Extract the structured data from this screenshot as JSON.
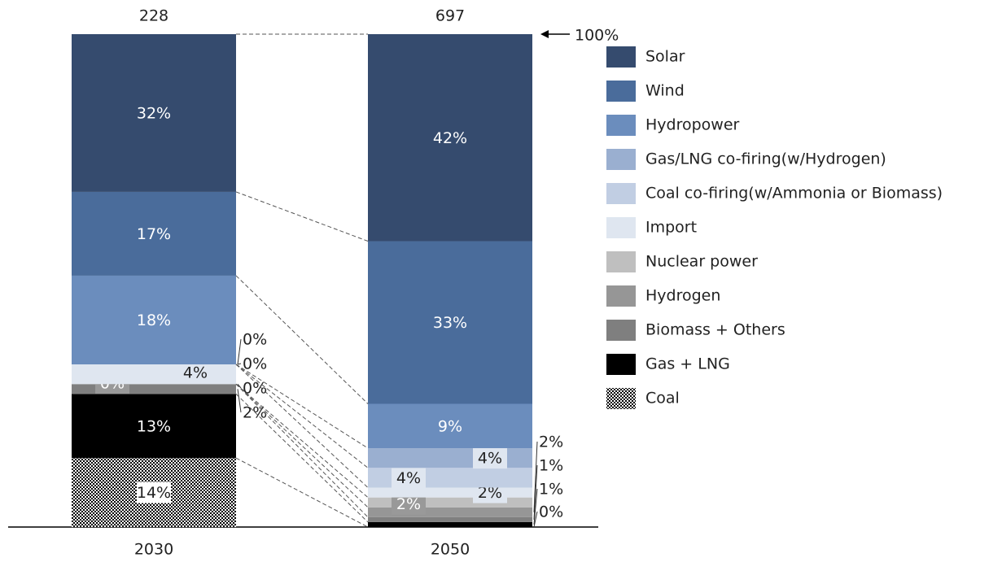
{
  "chart_data": {
    "type": "stacked_bar_100",
    "categories": [
      "2030",
      "2050"
    ],
    "totals": [
      228,
      697
    ],
    "annotation": "100%",
    "ylim": [
      0,
      100
    ],
    "series": [
      {
        "name": "Solar",
        "color": "#354b6e",
        "values": [
          32,
          42
        ],
        "value_labels": [
          "32%",
          "42%"
        ]
      },
      {
        "name": "Wind",
        "color": "#4a6c9b",
        "values": [
          17,
          33
        ],
        "value_labels": [
          "17%",
          "33%"
        ]
      },
      {
        "name": "Hydropower",
        "color": "#6b8dbd",
        "values": [
          18,
          9
        ],
        "value_labels": [
          "18%",
          "9%"
        ]
      },
      {
        "name": "Gas/LNG co-firing(w/Hydrogen)",
        "color": "#9aafd0",
        "values": [
          0,
          4
        ],
        "value_labels": [
          "0%",
          "4%"
        ]
      },
      {
        "name": "Coal co-firing(w/Ammonia or Biomass)",
        "color": "#c1cee3",
        "values": [
          0,
          4
        ],
        "value_labels": [
          "0%",
          "4%"
        ]
      },
      {
        "name": "Import",
        "color": "#dfe6f0",
        "values": [
          4,
          2
        ],
        "value_labels": [
          "4%",
          "2%"
        ]
      },
      {
        "name": "Nuclear power",
        "color": "#bfbfbf",
        "values": [
          0,
          2
        ],
        "value_labels": [
          "0%",
          "2%"
        ]
      },
      {
        "name": "Hydrogen",
        "color": "#969696",
        "values": [
          0,
          2
        ],
        "value_labels": [
          "0%",
          "2%"
        ]
      },
      {
        "name": "Biomass + Others",
        "color": "#7f7f7f",
        "values": [
          2,
          1
        ],
        "value_labels": [
          "2%",
          "1%"
        ]
      },
      {
        "name": "Gas + LNG",
        "color": "#000000",
        "values": [
          13,
          1
        ],
        "value_labels": [
          "13%",
          "1%"
        ]
      },
      {
        "name": "Coal",
        "color": "#2b2b2b",
        "values": [
          14,
          0
        ],
        "value_labels": [
          "14%",
          "0%"
        ]
      }
    ]
  }
}
